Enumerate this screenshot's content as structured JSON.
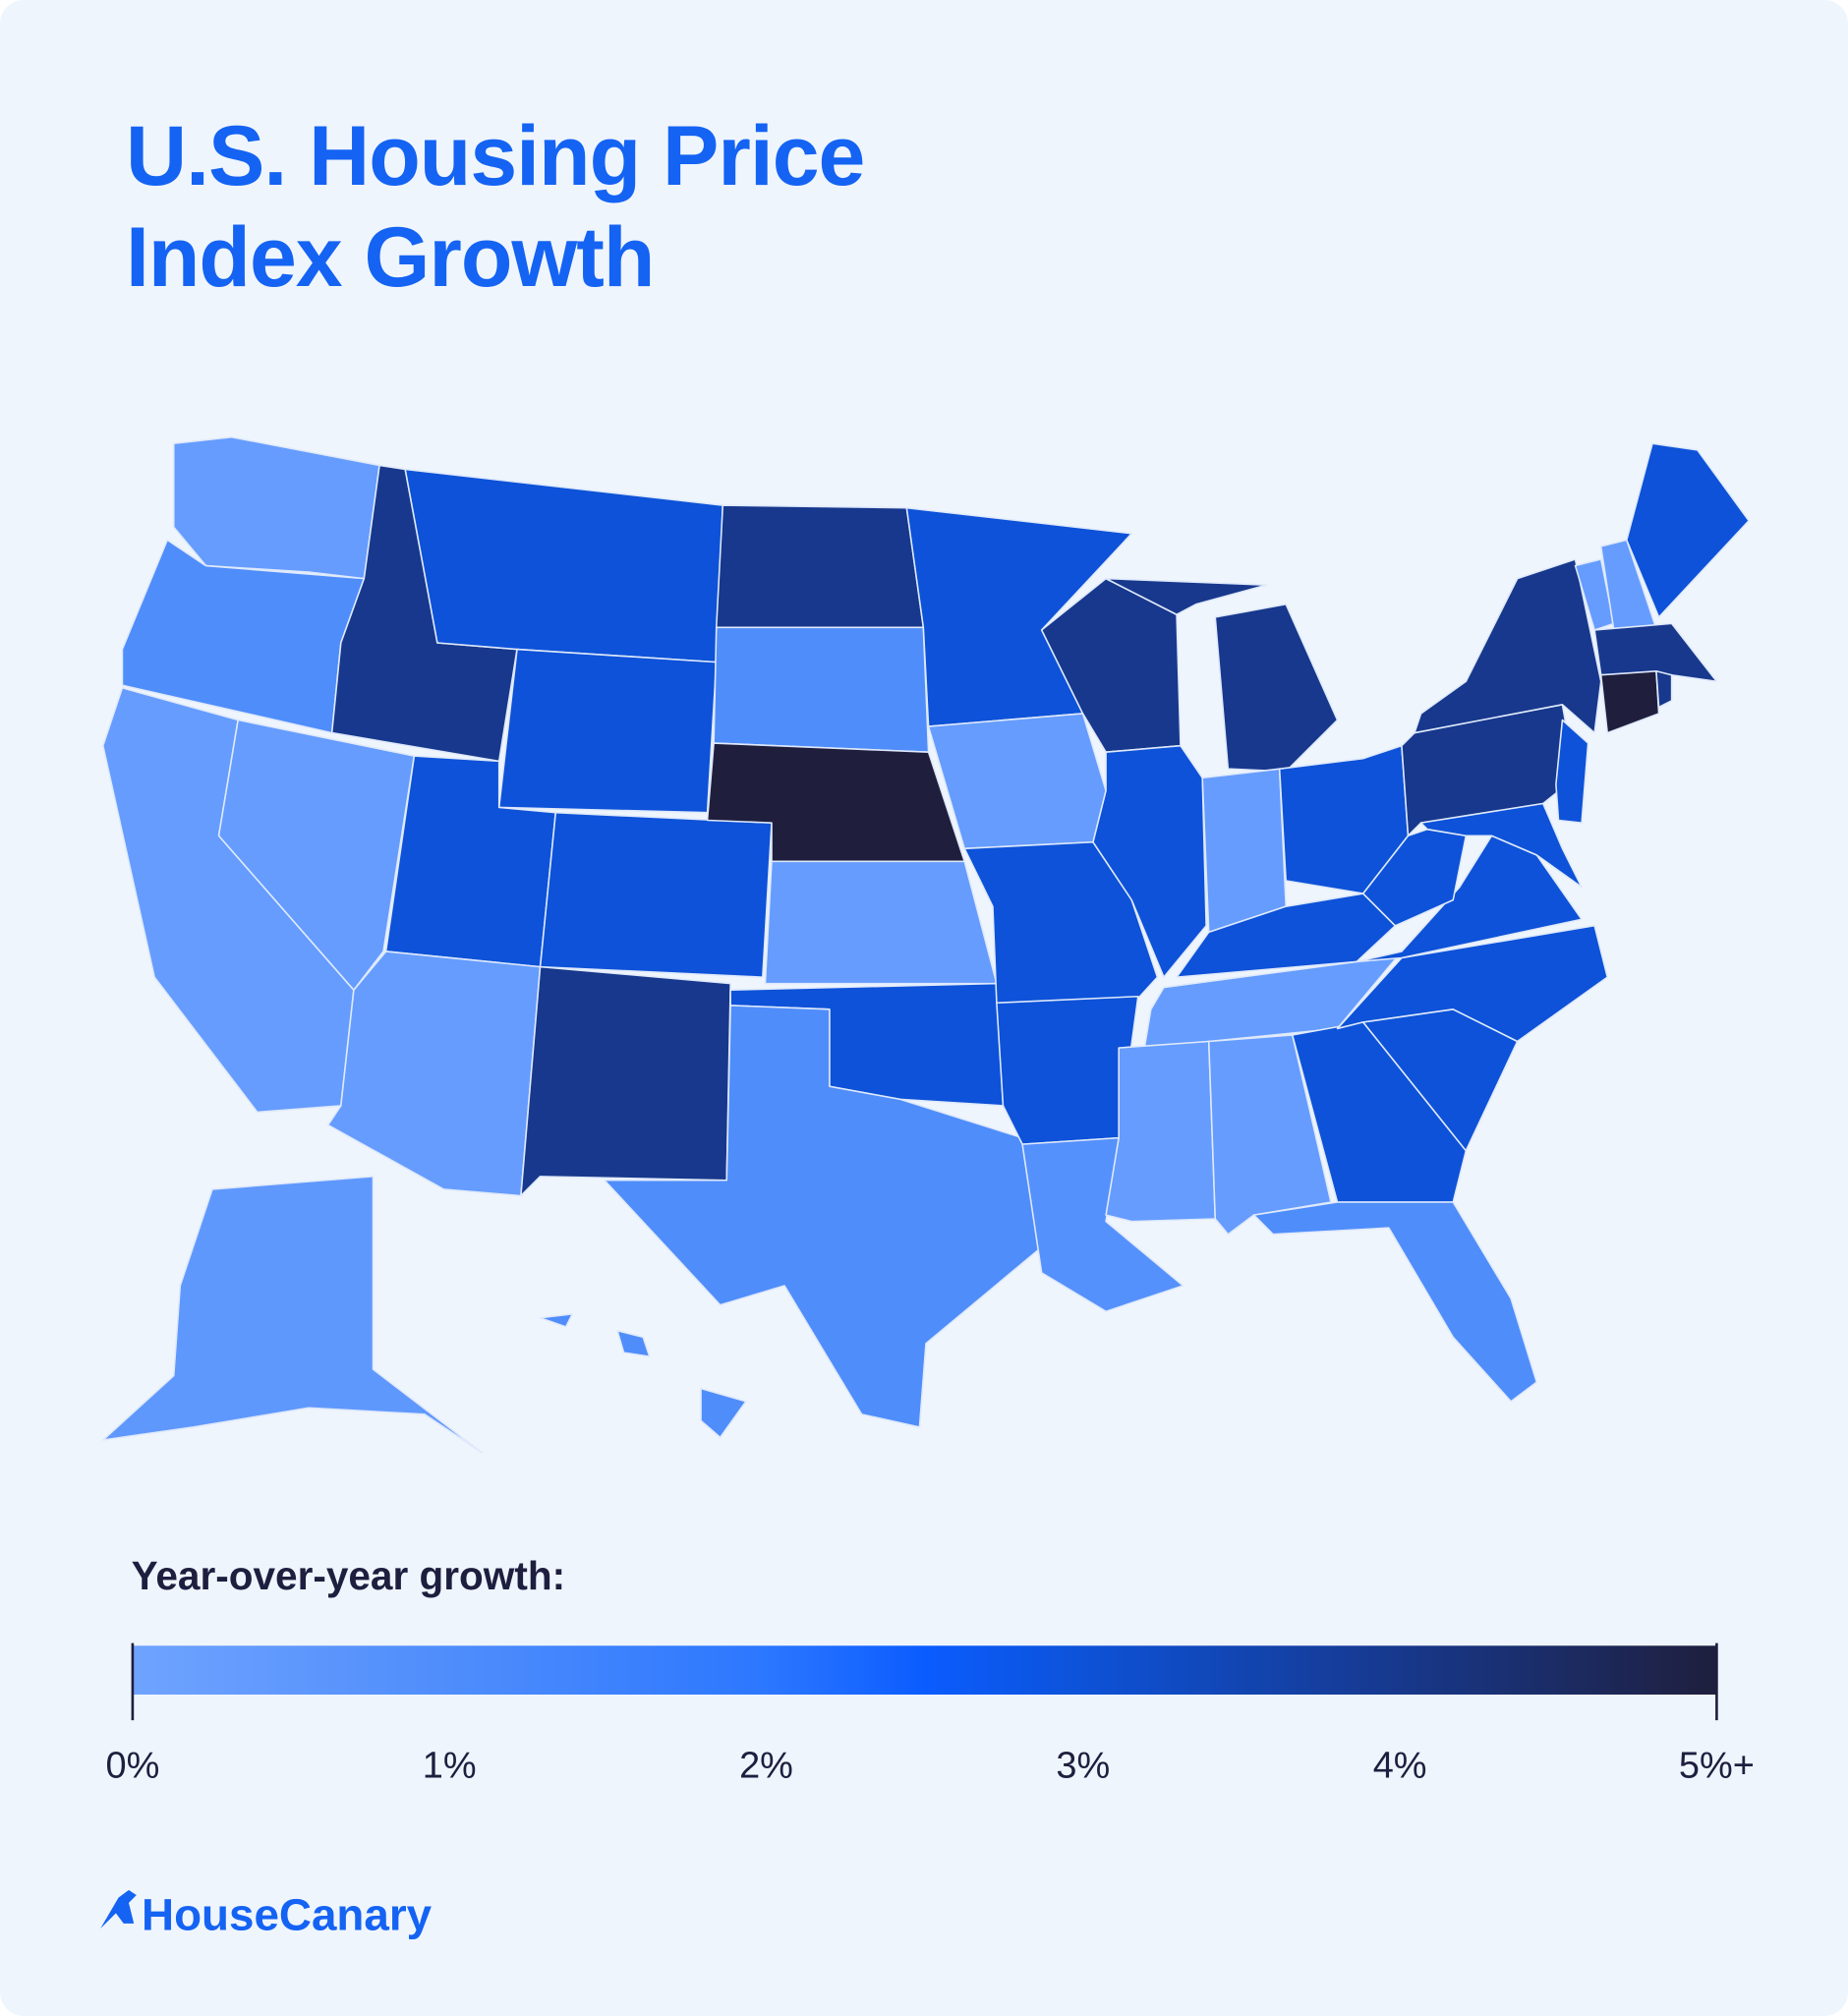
{
  "chart_data": {
    "type": "choropleth",
    "title": "U.S. Housing Price Index Growth",
    "legend_title": "Year-over-year growth:",
    "clim": [
      0,
      5
    ],
    "ticks": [
      {
        "value": 0,
        "label": "0%"
      },
      {
        "value": 1,
        "label": "1%"
      },
      {
        "value": 2,
        "label": "2%"
      },
      {
        "value": 3,
        "label": "3%"
      },
      {
        "value": 4,
        "label": "4%"
      },
      {
        "value": 5,
        "label": "5%+"
      }
    ],
    "color_stops": [
      {
        "value": 0,
        "color": "#6fa3ff"
      },
      {
        "value": 1,
        "color": "#4f8dfb"
      },
      {
        "value": 2,
        "color": "#2c77ff"
      },
      {
        "value": 2.5,
        "color": "#0b5cff"
      },
      {
        "value": 3,
        "color": "#0d52d8"
      },
      {
        "value": 4,
        "color": "#17388c"
      },
      {
        "value": 5,
        "color": "#1f1f3d"
      }
    ],
    "values": [
      0.3,
      1.0,
      0.3,
      0.3,
      4.0,
      3.0,
      3.0,
      3.0,
      3.0,
      0.3,
      4.0,
      4.0,
      1.0,
      5.0,
      0.3,
      3.0,
      1.0,
      3.0,
      0.3,
      3.0,
      3.0,
      0.8,
      4.0,
      3.0,
      4.0,
      0.3,
      3.0,
      3.0,
      0.3,
      0.3,
      0.3,
      3.0,
      1.0,
      3.0,
      3.0,
      3.0,
      3.0,
      4.0,
      4.0,
      3.0,
      3.0,
      0.3,
      0.3,
      3.0,
      4.0,
      5.0,
      4.0,
      0.5,
      1.0
    ],
    "brand": "HouseCanary"
  }
}
